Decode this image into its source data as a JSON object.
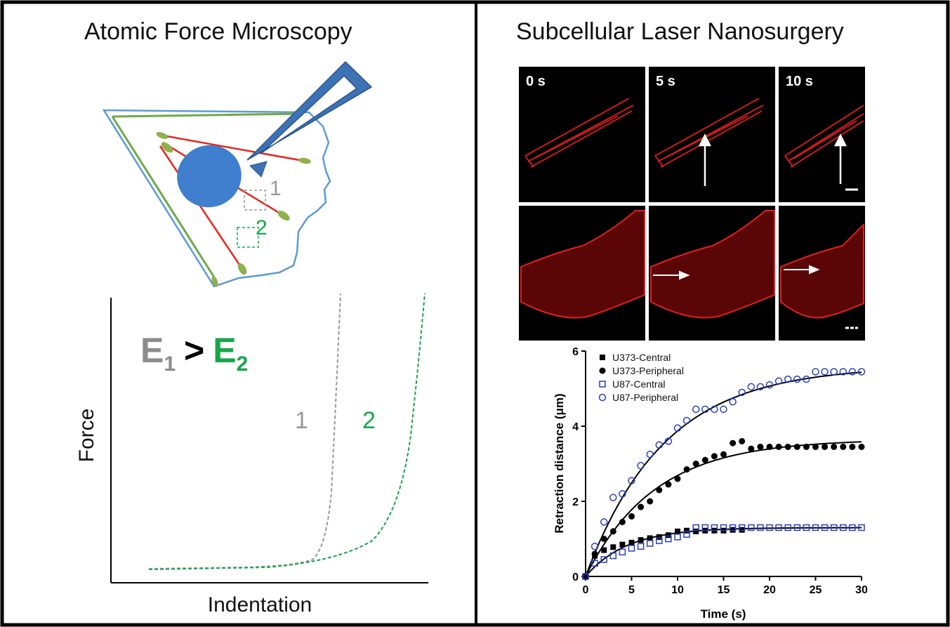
{
  "left_panel": {
    "title": "Atomic Force Microscopy",
    "region_label_1": "1",
    "region_label_2": "2",
    "inequality": {
      "e1": "E",
      "e1_sub": "1",
      "op": ">",
      "e2": "E",
      "e2_sub": "2"
    },
    "curve_label_1": "1",
    "curve_label_2": "2",
    "y_axis_label": "Force",
    "x_axis_label": "Indentation",
    "colors": {
      "cell_outline": "#5b9bd5",
      "stress_fiber": "#e8241c",
      "cortical_fiber": "#70a845",
      "adhesion": "#8fb14c",
      "nucleus": "#3f7fce",
      "cantilever": "#3d72b4",
      "gray_region": "#999999",
      "green_region": "#1aa54a"
    }
  },
  "right_panel": {
    "title": "Subcellular Laser Nanosurgery",
    "time_labels": [
      "0 s",
      "5 s",
      "10 s"
    ],
    "colors": {
      "actin": "#e02020",
      "arrow": "#ffffff"
    }
  },
  "chart_data": {
    "type": "scatter",
    "xlabel": "Time (s)",
    "ylabel": "Retraction distance (μm)",
    "xlim": [
      0,
      30
    ],
    "ylim": [
      0,
      6
    ],
    "xticks": [
      0,
      5,
      10,
      15,
      20,
      25,
      30
    ],
    "yticks": [
      0,
      2,
      4,
      6
    ],
    "legend_position": "top-left",
    "series": [
      {
        "name": "U373-Central",
        "marker": "filled-square",
        "color": "#000000",
        "points": [
          [
            0,
            0
          ],
          [
            1,
            0.55
          ],
          [
            2,
            0.7
          ],
          [
            3,
            0.78
          ],
          [
            4,
            0.85
          ],
          [
            5,
            0.9
          ],
          [
            6,
            0.97
          ],
          [
            7,
            1.02
          ],
          [
            8,
            1.05
          ],
          [
            9,
            1.1
          ],
          [
            10,
            1.2
          ],
          [
            11,
            1.22
          ],
          [
            12,
            1.2
          ],
          [
            13,
            1.22
          ],
          [
            14,
            1.22
          ],
          [
            15,
            1.22
          ],
          [
            16,
            1.24
          ],
          [
            17,
            1.24
          ]
        ]
      },
      {
        "name": "U373-Peripheral",
        "marker": "filled-circle",
        "color": "#000000",
        "points": [
          [
            0,
            0
          ],
          [
            1,
            0.6
          ],
          [
            2,
            1.0
          ],
          [
            3,
            1.2
          ],
          [
            4,
            1.45
          ],
          [
            5,
            1.6
          ],
          [
            6,
            1.85
          ],
          [
            7,
            2.0
          ],
          [
            8,
            2.3
          ],
          [
            9,
            2.45
          ],
          [
            10,
            2.6
          ],
          [
            11,
            2.85
          ],
          [
            12,
            3.0
          ],
          [
            13,
            3.1
          ],
          [
            14,
            3.2
          ],
          [
            15,
            3.25
          ],
          [
            16,
            3.55
          ],
          [
            17,
            3.6
          ],
          [
            18,
            3.4
          ],
          [
            19,
            3.45
          ],
          [
            20,
            3.45
          ],
          [
            21,
            3.45
          ],
          [
            22,
            3.45
          ],
          [
            23,
            3.45
          ],
          [
            24,
            3.45
          ],
          [
            25,
            3.45
          ],
          [
            26,
            3.45
          ],
          [
            27,
            3.45
          ],
          [
            28,
            3.45
          ],
          [
            29,
            3.45
          ],
          [
            30,
            3.45
          ]
        ]
      },
      {
        "name": "U87-Central",
        "marker": "open-square",
        "color": "#2a3fbf",
        "points": [
          [
            0,
            0
          ],
          [
            1,
            0.35
          ],
          [
            2,
            0.45
          ],
          [
            3,
            0.55
          ],
          [
            4,
            0.65
          ],
          [
            5,
            0.75
          ],
          [
            6,
            0.8
          ],
          [
            7,
            0.88
          ],
          [
            8,
            0.95
          ],
          [
            9,
            1.0
          ],
          [
            10,
            1.05
          ],
          [
            11,
            1.12
          ],
          [
            12,
            1.3
          ],
          [
            13,
            1.3
          ],
          [
            14,
            1.3
          ],
          [
            15,
            1.3
          ],
          [
            16,
            1.3
          ],
          [
            17,
            1.3
          ],
          [
            18,
            1.3
          ],
          [
            19,
            1.3
          ],
          [
            20,
            1.3
          ],
          [
            21,
            1.3
          ],
          [
            22,
            1.3
          ],
          [
            23,
            1.3
          ],
          [
            24,
            1.3
          ],
          [
            25,
            1.3
          ],
          [
            26,
            1.3
          ],
          [
            27,
            1.3
          ],
          [
            28,
            1.3
          ],
          [
            29,
            1.3
          ],
          [
            30,
            1.3
          ]
        ]
      },
      {
        "name": "U87-Peripheral",
        "marker": "open-circle",
        "color": "#2a3fbf",
        "points": [
          [
            0,
            0
          ],
          [
            1,
            0.8
          ],
          [
            2,
            1.45
          ],
          [
            3,
            2.1
          ],
          [
            4,
            2.2
          ],
          [
            5,
            2.55
          ],
          [
            6,
            2.95
          ],
          [
            7,
            3.25
          ],
          [
            8,
            3.5
          ],
          [
            9,
            3.6
          ],
          [
            10,
            3.95
          ],
          [
            11,
            4.15
          ],
          [
            12,
            4.45
          ],
          [
            13,
            4.45
          ],
          [
            14,
            4.45
          ],
          [
            15,
            4.45
          ],
          [
            16,
            4.65
          ],
          [
            17,
            4.9
          ],
          [
            18,
            5.05
          ],
          [
            19,
            5.05
          ],
          [
            20,
            5.1
          ],
          [
            21,
            5.2
          ],
          [
            22,
            5.25
          ],
          [
            23,
            5.25
          ],
          [
            24,
            5.25
          ],
          [
            25,
            5.45
          ],
          [
            26,
            5.45
          ],
          [
            27,
            5.45
          ],
          [
            28,
            5.45
          ],
          [
            29,
            5.45
          ],
          [
            30,
            5.45
          ]
        ]
      }
    ],
    "fit_curves": [
      {
        "asymptote": 5.6,
        "tau": 8.5
      },
      {
        "asymptote": 3.65,
        "tau": 7.5
      },
      {
        "asymptote": 1.3,
        "tau": 4.5
      }
    ]
  }
}
